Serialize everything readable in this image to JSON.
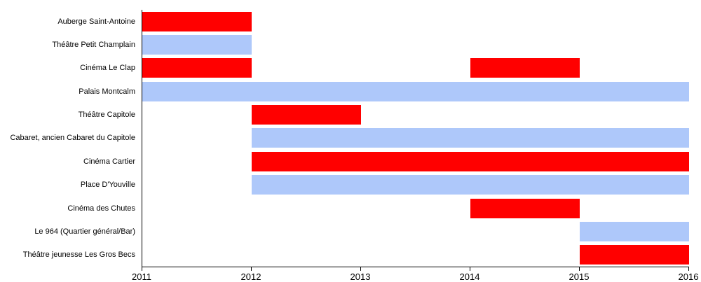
{
  "chart_data": {
    "type": "bar",
    "orientation": "horizontal",
    "title": "",
    "xlabel": "",
    "ylabel": "",
    "grid": false,
    "legend": "none",
    "x_axis": {
      "min": 2011,
      "max": 2016,
      "ticks": [
        "2011",
        "2012",
        "2013",
        "2014",
        "2015",
        "2016"
      ]
    },
    "colors": {
      "red": "#ff0000",
      "blue": "#aec8fa",
      "axis": "#000000"
    },
    "rows": [
      {
        "label": "Auberge Saint-Antoine",
        "segments": [
          {
            "start": 2011,
            "end": 2012,
            "color": "red"
          }
        ]
      },
      {
        "label": "Théâtre Petit Champlain",
        "segments": [
          {
            "start": 2011,
            "end": 2012,
            "color": "blue"
          }
        ]
      },
      {
        "label": "Cinéma Le Clap",
        "segments": [
          {
            "start": 2011,
            "end": 2012,
            "color": "red"
          },
          {
            "start": 2014,
            "end": 2015,
            "color": "red"
          }
        ]
      },
      {
        "label": "Palais Montcalm",
        "segments": [
          {
            "start": 2011,
            "end": 2016,
            "color": "blue"
          }
        ]
      },
      {
        "label": "Théâtre Capitole",
        "segments": [
          {
            "start": 2012,
            "end": 2013,
            "color": "red"
          }
        ]
      },
      {
        "label": "Cabaret, ancien Cabaret du Capitole",
        "segments": [
          {
            "start": 2012,
            "end": 2016,
            "color": "blue"
          }
        ]
      },
      {
        "label": "Cinéma Cartier",
        "segments": [
          {
            "start": 2012,
            "end": 2016,
            "color": "red"
          }
        ]
      },
      {
        "label": "Place D'Youville",
        "segments": [
          {
            "start": 2012,
            "end": 2016,
            "color": "blue"
          }
        ]
      },
      {
        "label": "Cinéma des Chutes",
        "segments": [
          {
            "start": 2014,
            "end": 2015,
            "color": "red"
          }
        ]
      },
      {
        "label": "Le 964 (Quartier général/Bar)",
        "segments": [
          {
            "start": 2015,
            "end": 2016,
            "color": "blue"
          }
        ]
      },
      {
        "label": "Théâtre jeunesse Les Gros Becs",
        "segments": [
          {
            "start": 2015,
            "end": 2016,
            "color": "red"
          }
        ]
      }
    ]
  }
}
